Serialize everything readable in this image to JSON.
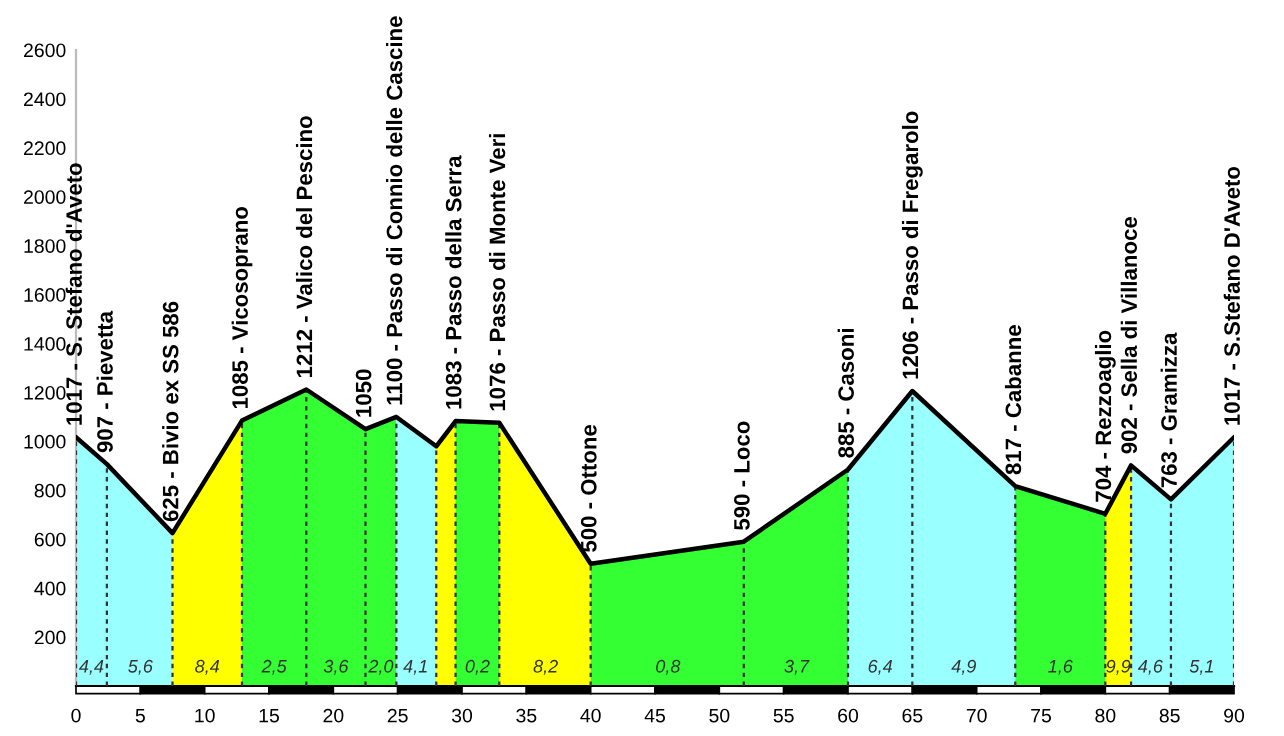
{
  "chart_data": {
    "type": "area",
    "xlim": [
      0,
      90
    ],
    "ylim": [
      0,
      2600
    ],
    "xticks": [
      0,
      5,
      10,
      15,
      20,
      25,
      30,
      35,
      40,
      45,
      50,
      55,
      60,
      65,
      70,
      75,
      80,
      85,
      90
    ],
    "yticks": [
      200,
      400,
      600,
      800,
      1000,
      1200,
      1400,
      1600,
      1800,
      2000,
      2200,
      2400,
      2600
    ],
    "series": [
      {
        "type": "line",
        "color": "#000000",
        "x": [
          0,
          2.4,
          7.5,
          12.9,
          17.9,
          22.5,
          24.9,
          28.0,
          29.5,
          32.9,
          40.0,
          51.9,
          60.0,
          65.0,
          73.0,
          80.0,
          82.0,
          85.1,
          90.0
        ],
        "values": [
          1017,
          907,
          625,
          1085,
          1212,
          1050,
          1100,
          980,
          1083,
          1076,
          500,
          590,
          885,
          1206,
          817,
          704,
          902,
          763,
          1017
        ]
      },
      {
        "color": "#99ffff",
        "x": [
          0,
          2.4,
          7.5
        ],
        "values": [
          1017,
          907,
          625
        ]
      },
      {
        "color": "#ffff00",
        "x": [
          7.5,
          12.9
        ],
        "values": [
          625,
          1085
        ]
      },
      {
        "color": "#33ff33",
        "x": [
          12.9,
          17.9,
          22.5,
          24.9
        ],
        "values": [
          1085,
          1212,
          1050,
          1100
        ]
      },
      {
        "color": "#99ffff",
        "x": [
          24.9,
          28.0
        ],
        "values": [
          1100,
          980
        ]
      },
      {
        "color": "#ffff00",
        "x": [
          28.0,
          29.5
        ],
        "values": [
          980,
          1083
        ]
      },
      {
        "color": "#33ff33",
        "x": [
          29.5,
          32.9
        ],
        "values": [
          1083,
          1076
        ]
      },
      {
        "color": "#ffff00",
        "x": [
          32.9,
          40.0
        ],
        "values": [
          1076,
          500
        ]
      },
      {
        "color": "#33ff33",
        "x": [
          40.0,
          51.9,
          60.0
        ],
        "values": [
          500,
          590,
          885
        ]
      },
      {
        "color": "#99ffff",
        "x": [
          60.0,
          65.0,
          73.0
        ],
        "values": [
          885,
          1206,
          817
        ]
      },
      {
        "color": "#33ff33",
        "x": [
          73.0,
          80.0
        ],
        "values": [
          817,
          704
        ]
      },
      {
        "color": "#ffff00",
        "x": [
          80.0,
          82.0
        ],
        "values": [
          704,
          902
        ]
      },
      {
        "color": "#99ffff",
        "x": [
          82.0,
          85.1,
          90.0
        ],
        "values": [
          902,
          763,
          1017
        ]
      }
    ],
    "annotations": [
      {
        "text": "1017 - S. Stefano d'Aveto",
        "x": 0,
        "y": 1017
      },
      {
        "text": "907 - Pievetta",
        "x": 2.4,
        "y": 907
      },
      {
        "text": "625 - Bivio ex SS 586",
        "x": 7.5,
        "y": 625
      },
      {
        "text": "1085 - Vicosoprano",
        "x": 12.9,
        "y": 1085
      },
      {
        "text": "1212 - Valico del Pescino",
        "x": 17.9,
        "y": 1212
      },
      {
        "text": "1050",
        "x": 22.5,
        "y": 1050
      },
      {
        "text": "1100 - Passo di Connio delle Cascine",
        "x": 24.9,
        "y": 1100
      },
      {
        "text": "1083 - Passo della Serra",
        "x": 29.5,
        "y": 1083
      },
      {
        "text": "1076 - Passo di Monte Veri",
        "x": 32.9,
        "y": 1076
      },
      {
        "text": "500 - Ottone",
        "x": 40.0,
        "y": 500
      },
      {
        "text": "590 - Loco",
        "x": 51.9,
        "y": 590
      },
      {
        "text": "885 - Casoni",
        "x": 60.0,
        "y": 885
      },
      {
        "text": "1206 - Passo di Fregarolo",
        "x": 65.0,
        "y": 1206
      },
      {
        "text": "817 - Cabanne",
        "x": 73.0,
        "y": 817
      },
      {
        "text": "704 - Rezzoaglio",
        "x": 80.0,
        "y": 704
      },
      {
        "text": "902 - Sella di Villanoce",
        "x": 82.0,
        "y": 902
      },
      {
        "text": "763 - Gramizza",
        "x": 85.1,
        "y": 763
      },
      {
        "text": "1017 - S.Stefano D'Aveto",
        "x": 90.0,
        "y": 1017
      },
      {
        "text": "4,4",
        "x": 1.2,
        "y": 40
      },
      {
        "text": "5,6",
        "x": 5.0,
        "y": 40
      },
      {
        "text": "8,4",
        "x": 10.2,
        "y": 40
      },
      {
        "text": "2,5",
        "x": 15.4,
        "y": 40
      },
      {
        "text": "3,6",
        "x": 20.2,
        "y": 40
      },
      {
        "text": "2,0",
        "x": 23.7,
        "y": 40
      },
      {
        "text": "4,1",
        "x": 26.4,
        "y": 40
      },
      {
        "text": "0,2",
        "x": 31.2,
        "y": 40
      },
      {
        "text": "8,2",
        "x": 36.5,
        "y": 40
      },
      {
        "text": "0,8",
        "x": 46.0,
        "y": 40
      },
      {
        "text": "3,7",
        "x": 56.0,
        "y": 40
      },
      {
        "text": "6,4",
        "x": 62.5,
        "y": 40
      },
      {
        "text": "4,9",
        "x": 69.0,
        "y": 40
      },
      {
        "text": "1,6",
        "x": 76.5,
        "y": 40
      },
      {
        "text": "9,9",
        "x": 81.0,
        "y": 40
      },
      {
        "text": "4,6",
        "x": 83.5,
        "y": 40
      },
      {
        "text": "5,1",
        "x": 87.5,
        "y": 40
      }
    ]
  }
}
